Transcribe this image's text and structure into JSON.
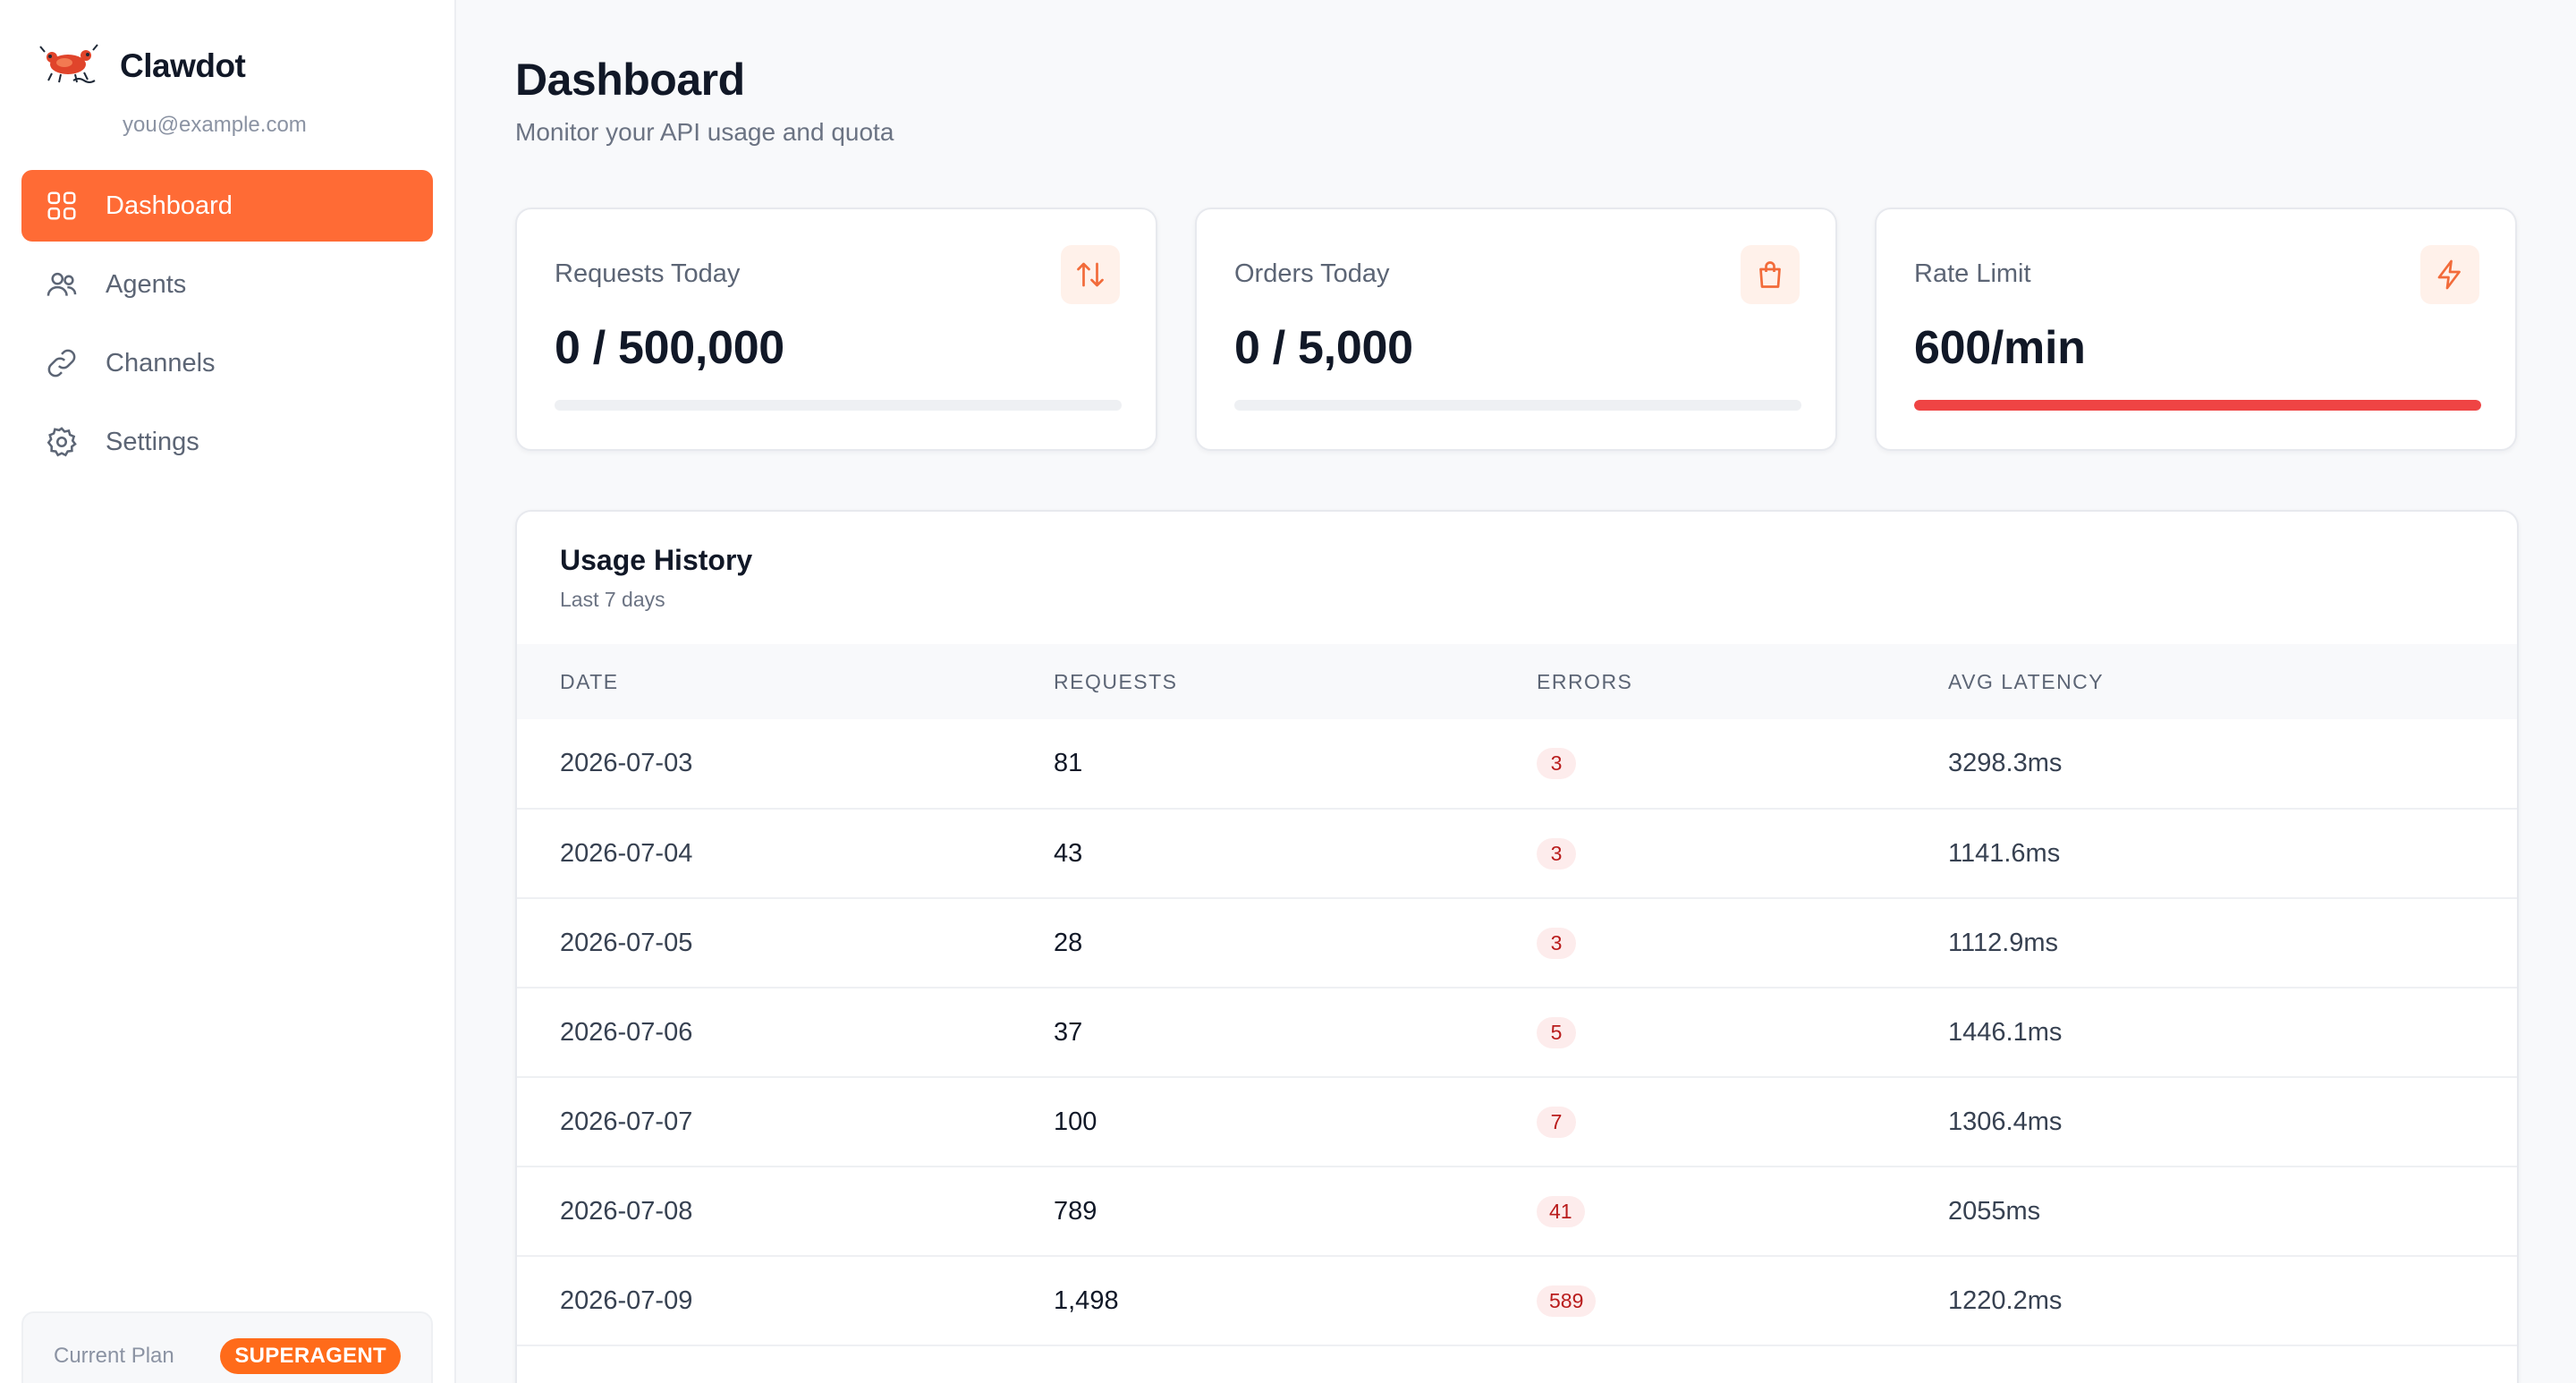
{
  "brand": {
    "name": "Clawdot",
    "email": "you@example.com"
  },
  "nav": [
    {
      "label": "Dashboard",
      "icon": "grid-icon",
      "active": true
    },
    {
      "label": "Agents",
      "icon": "users-icon",
      "active": false
    },
    {
      "label": "Channels",
      "icon": "link-icon",
      "active": false
    },
    {
      "label": "Settings",
      "icon": "gear-icon",
      "active": false
    }
  ],
  "plan": {
    "label": "Current Plan",
    "badge": "SUPERAGENT"
  },
  "page": {
    "title": "Dashboard",
    "subtitle": "Monitor your API usage and quota"
  },
  "stats": [
    {
      "label": "Requests Today",
      "value": "0 / 500,000",
      "icon": "arrows-up-down-icon",
      "progress": 0,
      "bar_color": "#eef0f3"
    },
    {
      "label": "Orders Today",
      "value": "0 / 5,000",
      "icon": "shopping-bag-icon",
      "progress": 0,
      "bar_color": "#eef0f3"
    },
    {
      "label": "Rate Limit",
      "value": "600/min",
      "icon": "lightning-icon",
      "progress": 1,
      "bar_color": "#ef4444"
    }
  ],
  "history": {
    "title": "Usage History",
    "subtitle": "Last 7 days",
    "columns": [
      "Date",
      "Requests",
      "Errors",
      "Avg Latency"
    ],
    "rows": [
      {
        "date": "2026-07-03",
        "requests": "81",
        "errors": "3",
        "latency": "3298.3ms"
      },
      {
        "date": "2026-07-04",
        "requests": "43",
        "errors": "3",
        "latency": "1141.6ms"
      },
      {
        "date": "2026-07-05",
        "requests": "28",
        "errors": "3",
        "latency": "1112.9ms"
      },
      {
        "date": "2026-07-06",
        "requests": "37",
        "errors": "5",
        "latency": "1446.1ms"
      },
      {
        "date": "2026-07-07",
        "requests": "100",
        "errors": "7",
        "latency": "1306.4ms"
      },
      {
        "date": "2026-07-08",
        "requests": "789",
        "errors": "41",
        "latency": "2055ms"
      },
      {
        "date": "2026-07-09",
        "requests": "1,498",
        "errors": "589",
        "latency": "1220.2ms"
      }
    ]
  },
  "colors": {
    "accent": "#ff6b35",
    "error_text": "#b91c1c",
    "error_bg": "#fdecec",
    "rate_bar": "#ef4444"
  }
}
